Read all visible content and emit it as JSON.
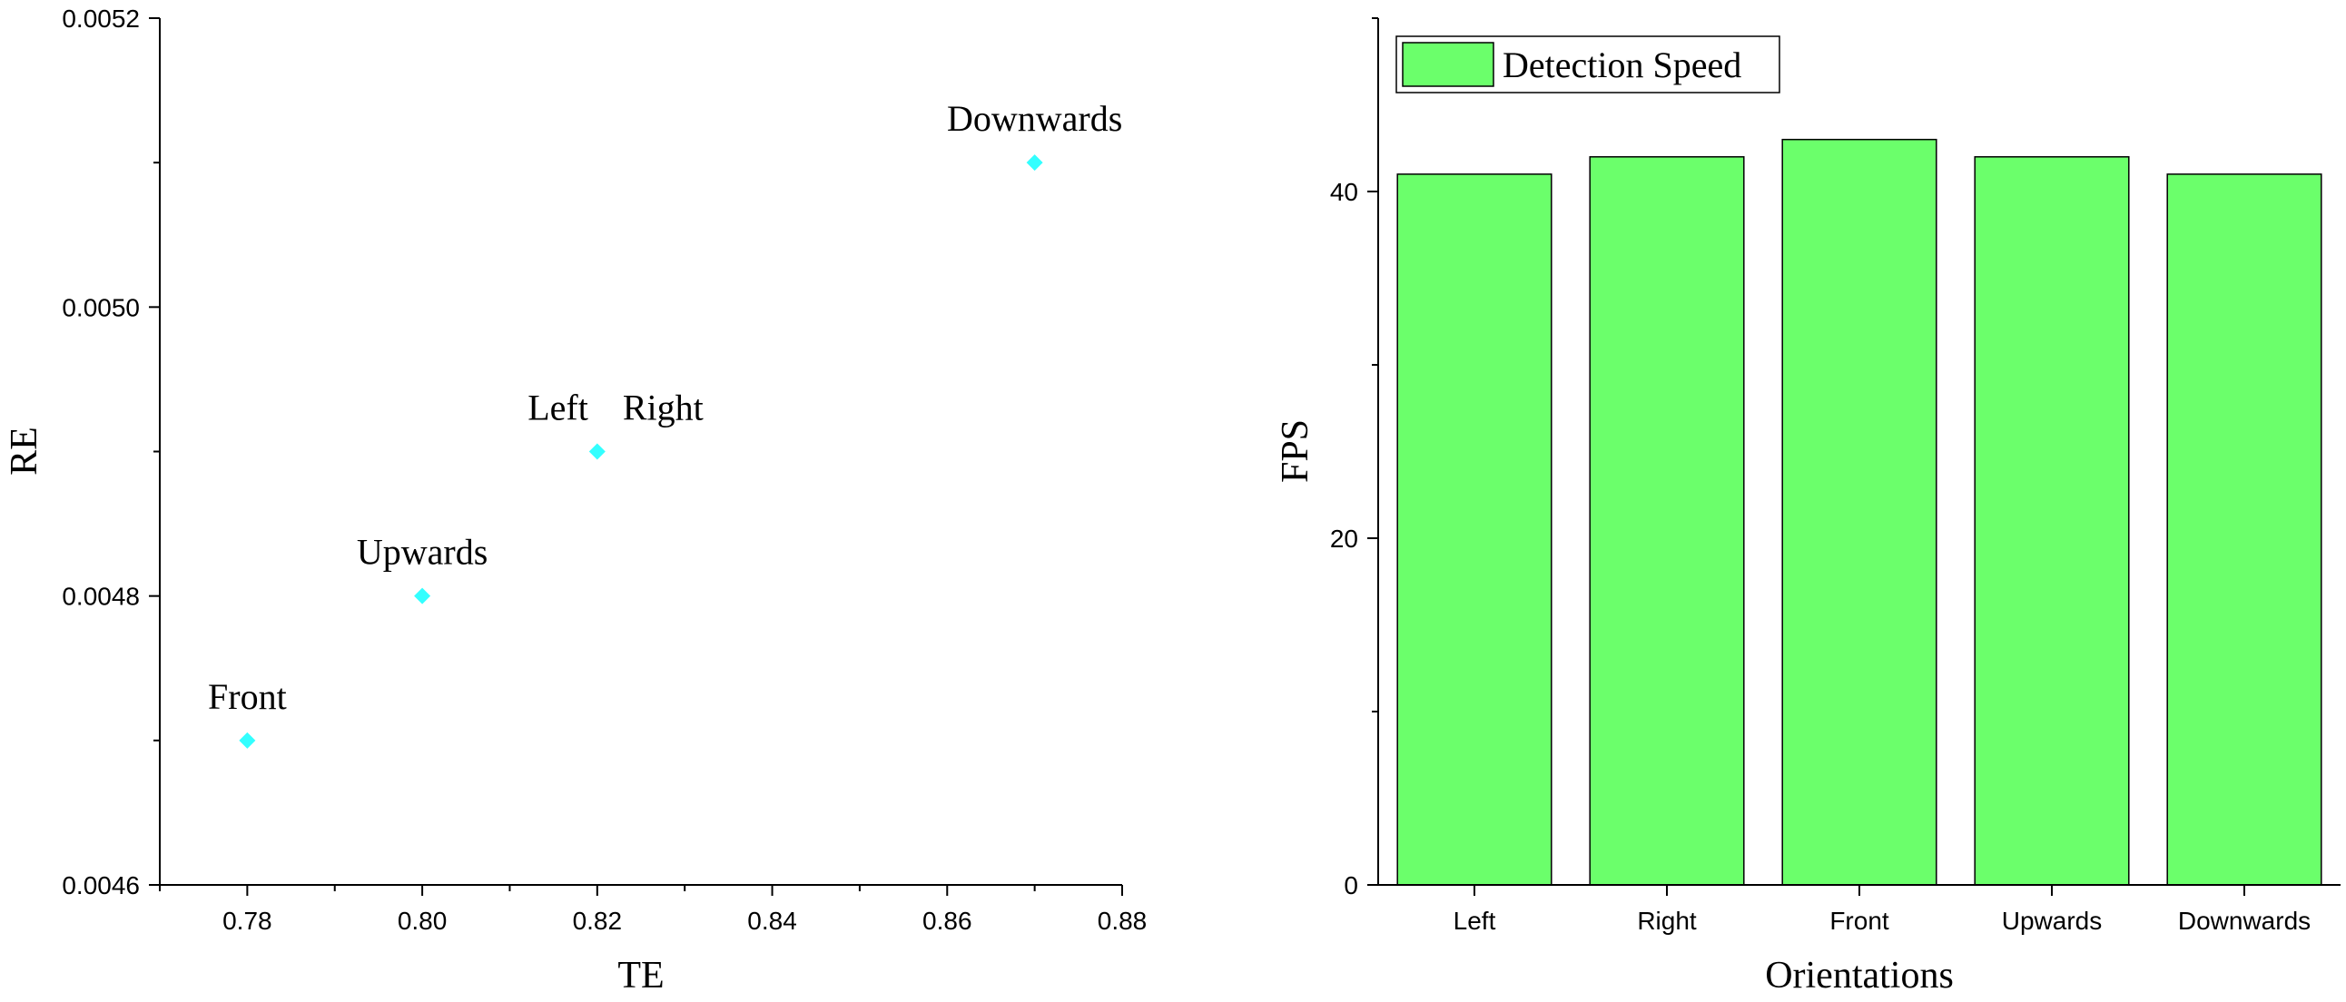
{
  "chart_data": [
    {
      "type": "scatter",
      "xlabel": "TE",
      "ylabel": "RE",
      "xlim": [
        0.77,
        0.88
      ],
      "ylim": [
        0.0046,
        0.0052
      ],
      "x_ticks": [
        "0.78",
        "0.80",
        "0.82",
        "0.84",
        "0.86",
        "0.88"
      ],
      "y_ticks": [
        "0.0046",
        "0.0048",
        "0.0050",
        "0.0052"
      ],
      "marker_color": "#33ffff",
      "points": [
        {
          "label": "Front",
          "x": 0.78,
          "y": 0.0047
        },
        {
          "label": "Upwards",
          "x": 0.8,
          "y": 0.0048
        },
        {
          "label": "Left",
          "x": 0.82,
          "y": 0.0049
        },
        {
          "label": "Right",
          "x": 0.82,
          "y": 0.0049
        },
        {
          "label": "Downwards",
          "x": 0.87,
          "y": 0.0051
        }
      ],
      "grid": false
    },
    {
      "type": "bar",
      "xlabel": "Orientations",
      "ylabel": "FPS",
      "categories": [
        "Left",
        "Right",
        "Front",
        "Upwards",
        "Downwards"
      ],
      "series": [
        {
          "name": "Detection Speed",
          "values": [
            41,
            42,
            43,
            42,
            41
          ]
        }
      ],
      "ylim": [
        0,
        50
      ],
      "y_ticks": [
        "0",
        "20",
        "40"
      ],
      "bar_color": "#6bff6b",
      "legend": "top-left",
      "grid": false
    }
  ]
}
